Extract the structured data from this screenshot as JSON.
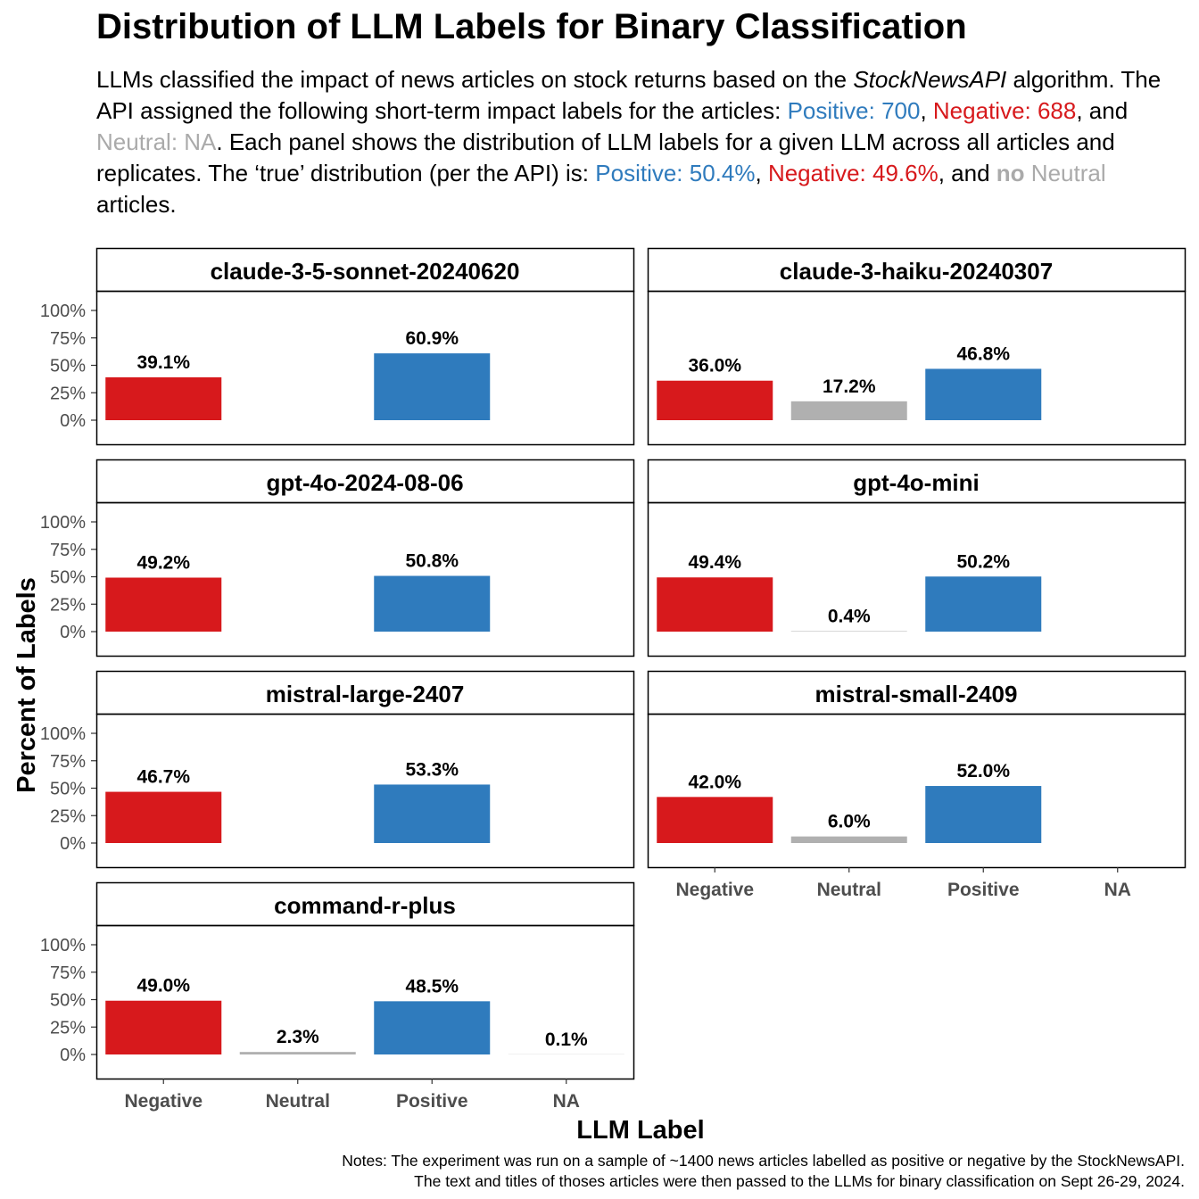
{
  "title": "Distribution of LLM Labels for Binary Classification",
  "subtitle": {
    "p1": "LLMs classified the impact of news articles on stock returns based on the ",
    "p2": "StockNewsAPI",
    "p3": " algorithm. The API assigned the following short-term impact labels for the articles: ",
    "p4": "Positive: 700",
    "p5": ", ",
    "p6": "Negative: 688",
    "p7": ", and ",
    "p8": "Neutral: NA",
    "p9": ". Each panel shows the distribution of LLM labels for a given LLM across all articles and replicates. The ‘true’ distribution (per the API) is: ",
    "p10": "Positive: 50.4%",
    "p11": ", ",
    "p12": "Negative: 49.6%",
    "p13": ", and ",
    "p14": "no",
    "p15": " ",
    "p16": "Neutral",
    "p17": " articles."
  },
  "notes": {
    "line1": "Notes: The experiment was run on a sample of ~1400 news articles labelled as positive or negative by the StockNewsAPI.",
    "line2": "The text and titles of thoses articles were then passed to the LLMs for binary classification on Sept 26-29, 2024."
  },
  "colors": {
    "Negative": "#d7191c",
    "Neutral": "#b0b0b0",
    "Positive": "#2f7bbd",
    "NA": "#888888"
  },
  "chart_data": {
    "type": "bar",
    "xlabel": "LLM Label",
    "ylabel": "Percent of Labels",
    "categories": [
      "Negative",
      "Neutral",
      "Positive",
      "NA"
    ],
    "yticks": [
      "0%",
      "25%",
      "50%",
      "75%",
      "100%"
    ],
    "ylim": [
      0,
      100
    ],
    "panels": [
      {
        "name": "claude-3-5-sonnet-20240620",
        "values": [
          39.1,
          null,
          60.9,
          null
        ],
        "labels": [
          "39.1%",
          "",
          "60.9%",
          ""
        ]
      },
      {
        "name": "claude-3-haiku-20240307",
        "values": [
          36.0,
          17.2,
          46.8,
          null
        ],
        "labels": [
          "36.0%",
          "17.2%",
          "46.8%",
          ""
        ]
      },
      {
        "name": "gpt-4o-2024-08-06",
        "values": [
          49.2,
          null,
          50.8,
          null
        ],
        "labels": [
          "49.2%",
          "",
          "50.8%",
          ""
        ]
      },
      {
        "name": "gpt-4o-mini",
        "values": [
          49.4,
          0.4,
          50.2,
          null
        ],
        "labels": [
          "49.4%",
          "0.4%",
          "50.2%",
          ""
        ]
      },
      {
        "name": "mistral-large-2407",
        "values": [
          46.7,
          null,
          53.3,
          null
        ],
        "labels": [
          "46.7%",
          "",
          "53.3%",
          ""
        ]
      },
      {
        "name": "mistral-small-2409",
        "values": [
          42.0,
          6.0,
          52.0,
          null
        ],
        "labels": [
          "42.0%",
          "6.0%",
          "52.0%",
          ""
        ]
      },
      {
        "name": "command-r-plus",
        "values": [
          49.0,
          2.3,
          48.5,
          0.1
        ],
        "labels": [
          "49.0%",
          "2.3%",
          "48.5%",
          "0.1%"
        ]
      }
    ]
  }
}
